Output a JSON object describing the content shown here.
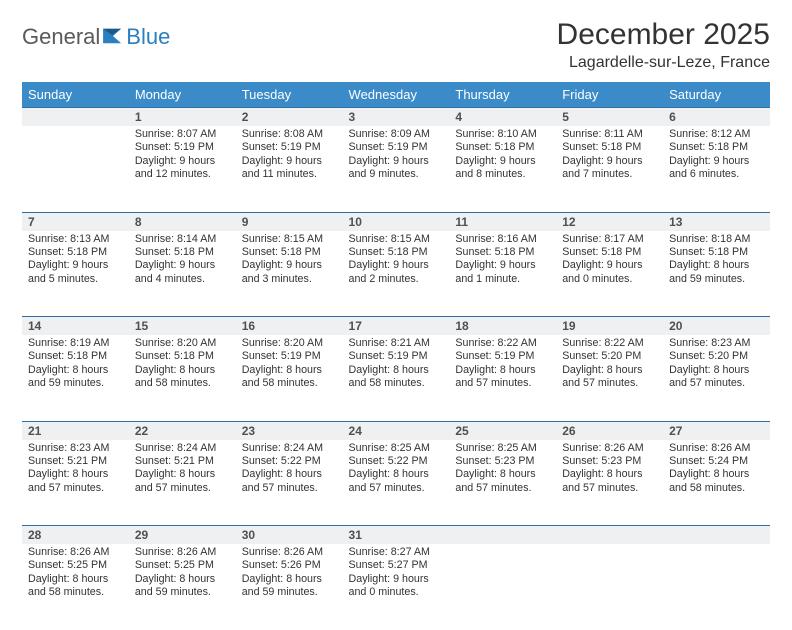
{
  "brand": {
    "part1": "General",
    "part2": "Blue"
  },
  "title": "December 2025",
  "location": "Lagardelle-sur-Leze, France",
  "colors": {
    "header_bg": "#3b8bc8",
    "header_text": "#ffffff",
    "daynum_bg": "#eef0f1",
    "row_border": "#2f6fa3",
    "brand_gray": "#5a5a5a",
    "brand_blue": "#2a7fbf"
  },
  "weekdays": [
    "Sunday",
    "Monday",
    "Tuesday",
    "Wednesday",
    "Thursday",
    "Friday",
    "Saturday"
  ],
  "weeks": [
    {
      "nums": [
        "",
        "1",
        "2",
        "3",
        "4",
        "5",
        "6"
      ],
      "cells": [
        {
          "sunrise": "",
          "sunset": "",
          "daylight": ""
        },
        {
          "sunrise": "Sunrise: 8:07 AM",
          "sunset": "Sunset: 5:19 PM",
          "daylight": "Daylight: 9 hours and 12 minutes."
        },
        {
          "sunrise": "Sunrise: 8:08 AM",
          "sunset": "Sunset: 5:19 PM",
          "daylight": "Daylight: 9 hours and 11 minutes."
        },
        {
          "sunrise": "Sunrise: 8:09 AM",
          "sunset": "Sunset: 5:19 PM",
          "daylight": "Daylight: 9 hours and 9 minutes."
        },
        {
          "sunrise": "Sunrise: 8:10 AM",
          "sunset": "Sunset: 5:18 PM",
          "daylight": "Daylight: 9 hours and 8 minutes."
        },
        {
          "sunrise": "Sunrise: 8:11 AM",
          "sunset": "Sunset: 5:18 PM",
          "daylight": "Daylight: 9 hours and 7 minutes."
        },
        {
          "sunrise": "Sunrise: 8:12 AM",
          "sunset": "Sunset: 5:18 PM",
          "daylight": "Daylight: 9 hours and 6 minutes."
        }
      ]
    },
    {
      "nums": [
        "7",
        "8",
        "9",
        "10",
        "11",
        "12",
        "13"
      ],
      "cells": [
        {
          "sunrise": "Sunrise: 8:13 AM",
          "sunset": "Sunset: 5:18 PM",
          "daylight": "Daylight: 9 hours and 5 minutes."
        },
        {
          "sunrise": "Sunrise: 8:14 AM",
          "sunset": "Sunset: 5:18 PM",
          "daylight": "Daylight: 9 hours and 4 minutes."
        },
        {
          "sunrise": "Sunrise: 8:15 AM",
          "sunset": "Sunset: 5:18 PM",
          "daylight": "Daylight: 9 hours and 3 minutes."
        },
        {
          "sunrise": "Sunrise: 8:15 AM",
          "sunset": "Sunset: 5:18 PM",
          "daylight": "Daylight: 9 hours and 2 minutes."
        },
        {
          "sunrise": "Sunrise: 8:16 AM",
          "sunset": "Sunset: 5:18 PM",
          "daylight": "Daylight: 9 hours and 1 minute."
        },
        {
          "sunrise": "Sunrise: 8:17 AM",
          "sunset": "Sunset: 5:18 PM",
          "daylight": "Daylight: 9 hours and 0 minutes."
        },
        {
          "sunrise": "Sunrise: 8:18 AM",
          "sunset": "Sunset: 5:18 PM",
          "daylight": "Daylight: 8 hours and 59 minutes."
        }
      ]
    },
    {
      "nums": [
        "14",
        "15",
        "16",
        "17",
        "18",
        "19",
        "20"
      ],
      "cells": [
        {
          "sunrise": "Sunrise: 8:19 AM",
          "sunset": "Sunset: 5:18 PM",
          "daylight": "Daylight: 8 hours and 59 minutes."
        },
        {
          "sunrise": "Sunrise: 8:20 AM",
          "sunset": "Sunset: 5:18 PM",
          "daylight": "Daylight: 8 hours and 58 minutes."
        },
        {
          "sunrise": "Sunrise: 8:20 AM",
          "sunset": "Sunset: 5:19 PM",
          "daylight": "Daylight: 8 hours and 58 minutes."
        },
        {
          "sunrise": "Sunrise: 8:21 AM",
          "sunset": "Sunset: 5:19 PM",
          "daylight": "Daylight: 8 hours and 58 minutes."
        },
        {
          "sunrise": "Sunrise: 8:22 AM",
          "sunset": "Sunset: 5:19 PM",
          "daylight": "Daylight: 8 hours and 57 minutes."
        },
        {
          "sunrise": "Sunrise: 8:22 AM",
          "sunset": "Sunset: 5:20 PM",
          "daylight": "Daylight: 8 hours and 57 minutes."
        },
        {
          "sunrise": "Sunrise: 8:23 AM",
          "sunset": "Sunset: 5:20 PM",
          "daylight": "Daylight: 8 hours and 57 minutes."
        }
      ]
    },
    {
      "nums": [
        "21",
        "22",
        "23",
        "24",
        "25",
        "26",
        "27"
      ],
      "cells": [
        {
          "sunrise": "Sunrise: 8:23 AM",
          "sunset": "Sunset: 5:21 PM",
          "daylight": "Daylight: 8 hours and 57 minutes."
        },
        {
          "sunrise": "Sunrise: 8:24 AM",
          "sunset": "Sunset: 5:21 PM",
          "daylight": "Daylight: 8 hours and 57 minutes."
        },
        {
          "sunrise": "Sunrise: 8:24 AM",
          "sunset": "Sunset: 5:22 PM",
          "daylight": "Daylight: 8 hours and 57 minutes."
        },
        {
          "sunrise": "Sunrise: 8:25 AM",
          "sunset": "Sunset: 5:22 PM",
          "daylight": "Daylight: 8 hours and 57 minutes."
        },
        {
          "sunrise": "Sunrise: 8:25 AM",
          "sunset": "Sunset: 5:23 PM",
          "daylight": "Daylight: 8 hours and 57 minutes."
        },
        {
          "sunrise": "Sunrise: 8:26 AM",
          "sunset": "Sunset: 5:23 PM",
          "daylight": "Daylight: 8 hours and 57 minutes."
        },
        {
          "sunrise": "Sunrise: 8:26 AM",
          "sunset": "Sunset: 5:24 PM",
          "daylight": "Daylight: 8 hours and 58 minutes."
        }
      ]
    },
    {
      "nums": [
        "28",
        "29",
        "30",
        "31",
        "",
        "",
        ""
      ],
      "cells": [
        {
          "sunrise": "Sunrise: 8:26 AM",
          "sunset": "Sunset: 5:25 PM",
          "daylight": "Daylight: 8 hours and 58 minutes."
        },
        {
          "sunrise": "Sunrise: 8:26 AM",
          "sunset": "Sunset: 5:25 PM",
          "daylight": "Daylight: 8 hours and 59 minutes."
        },
        {
          "sunrise": "Sunrise: 8:26 AM",
          "sunset": "Sunset: 5:26 PM",
          "daylight": "Daylight: 8 hours and 59 minutes."
        },
        {
          "sunrise": "Sunrise: 8:27 AM",
          "sunset": "Sunset: 5:27 PM",
          "daylight": "Daylight: 9 hours and 0 minutes."
        },
        {
          "sunrise": "",
          "sunset": "",
          "daylight": ""
        },
        {
          "sunrise": "",
          "sunset": "",
          "daylight": ""
        },
        {
          "sunrise": "",
          "sunset": "",
          "daylight": ""
        }
      ]
    }
  ]
}
